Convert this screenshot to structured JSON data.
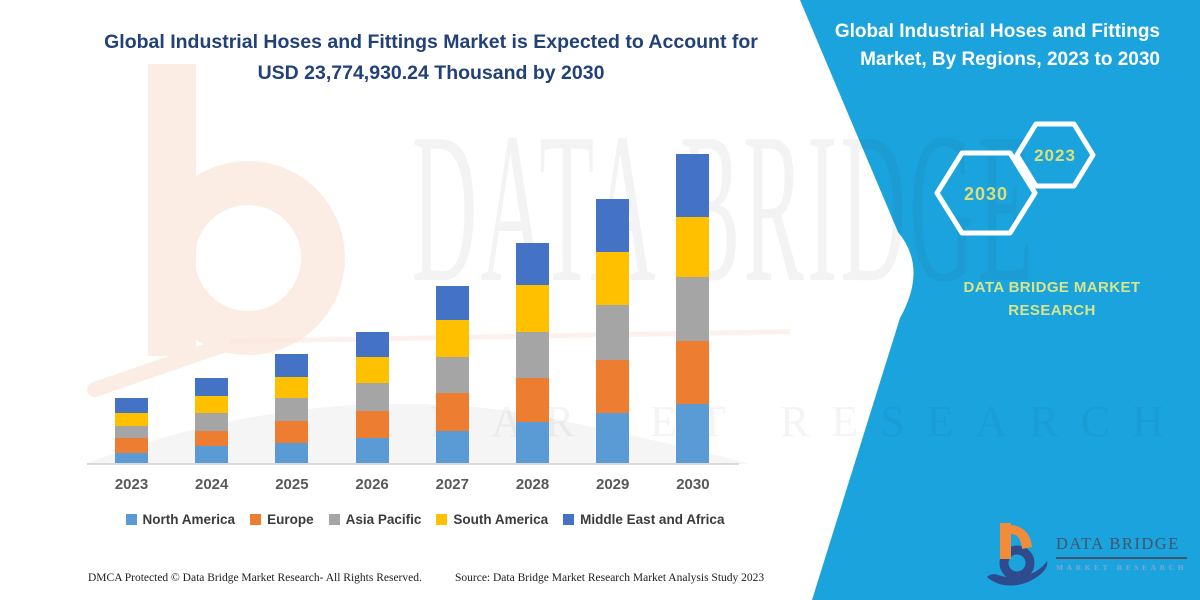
{
  "colors": {
    "teal": "#1BA3DE",
    "title_navy": "#234177",
    "axis_gray": "#D9D9D9",
    "tick_gray": "#595959",
    "legend_text": "#3B3B3B",
    "hexagon_label": "#D9E07B",
    "brand_green": "#D6E48C",
    "logo_navy": "#2E4B8D",
    "logo_orange": "#F18C3B",
    "logo_slate": "#44546A",
    "logo_lightblue": "#7FA8CF",
    "watermark_peach": "#FCEDE4"
  },
  "left_panel": {
    "title": "Global Industrial Hoses and Fittings Market is Expected to Account for USD 23,774,930.24 Thousand by 2030",
    "footer_left": "DMCA Protected © Data Bridge Market Research-  All Rights Reserved.",
    "footer_source": "Source: Data Bridge Market Research  Market Analysis Study 2023"
  },
  "chart_data": {
    "type": "bar",
    "stacked": true,
    "grid": false,
    "y_axis_shown": false,
    "title": "Global Industrial Hoses and Fittings Market is Expected to Account for USD 23,774,930.24 Thousand by 2030",
    "xlabel": "",
    "ylabel": "",
    "legend_position": "bottom",
    "categories": [
      "2023",
      "2024",
      "2025",
      "2026",
      "2027",
      "2028",
      "2029",
      "2030"
    ],
    "series": [
      {
        "name": "North America",
        "color": "#5B9BD5",
        "values": [
          11,
          18,
          21,
          26,
          33,
          42,
          51,
          60
        ]
      },
      {
        "name": "Europe",
        "color": "#ED7D31",
        "values": [
          15,
          15,
          22,
          27,
          38,
          44,
          53,
          63
        ]
      },
      {
        "name": "Asia Pacific",
        "color": "#A5A5A5",
        "values": [
          12,
          18,
          23,
          28,
          36,
          46,
          55,
          64
        ]
      },
      {
        "name": "South America",
        "color": "#FFC000",
        "values": [
          13,
          17,
          21,
          26,
          37,
          47,
          53,
          60
        ]
      },
      {
        "name": "Middle East and Africa",
        "color": "#4472C4",
        "values": [
          15,
          18,
          23,
          25,
          34,
          42,
          53,
          63
        ]
      }
    ],
    "value_unit": "relative segment height (chart displays no value axis)",
    "stated_2030_total": "USD 23,774,930.24 Thousand"
  },
  "right_panel": {
    "title": "Global Industrial Hoses and Fittings Market, By Regions, 2023 to 2030",
    "hexagon_large_label": "2030",
    "hexagon_small_label": "2023",
    "brand_name": "DATA BRIDGE MARKET RESEARCH"
  },
  "logo": {
    "name": "DATA BRIDGE",
    "tagline": "MARKET RESEARCH"
  },
  "watermark": {
    "big_text": "DATA BRIDGE",
    "spaced_text": "MARKET RESEARCH"
  }
}
